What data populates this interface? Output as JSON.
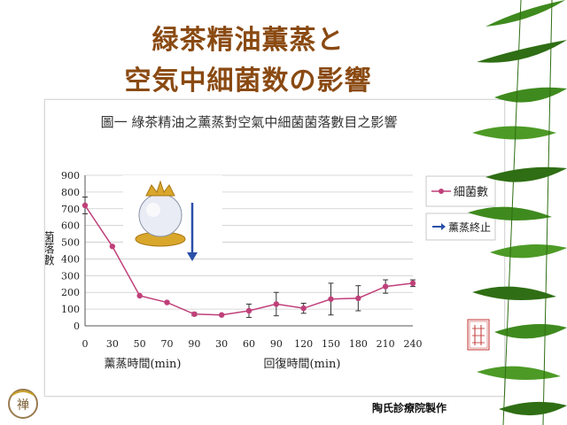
{
  "slide": {
    "title_line1": "緑茶精油薫蒸と",
    "title_line2": "空気中細菌数の影響",
    "credit": "陶氏診療院製作",
    "logo_char": "禅"
  },
  "chart_data": {
    "type": "line",
    "title": "圖一 綠茶精油之薰蒸對空氣中細菌菌落數目之影響",
    "ylabel": "菌落數",
    "xlabel_fumigation": "薰蒸時間(min)",
    "xlabel_recovery": "回復時間(min)",
    "ylim": [
      0,
      900
    ],
    "yticks": [
      "0",
      "100",
      "200",
      "300",
      "400",
      "500",
      "600",
      "700",
      "800",
      "900"
    ],
    "categories": [
      "0",
      "30",
      "50",
      "70",
      "90",
      "30",
      "60",
      "90",
      "120",
      "150",
      "180",
      "210",
      "240"
    ],
    "series": [
      {
        "name": "細菌數",
        "color": "#c0407a",
        "values": [
          720,
          475,
          180,
          140,
          70,
          65,
          90,
          130,
          105,
          160,
          165,
          235,
          255
        ],
        "errors": [
          50,
          0,
          0,
          0,
          10,
          0,
          40,
          70,
          30,
          95,
          75,
          40,
          20
        ]
      }
    ],
    "legend": {
      "series_label": "細菌數",
      "arrow_label": "薰蒸終止",
      "position": "right"
    },
    "grid": true,
    "stamp_text": [
      "所",
      "長",
      "蔡",
      "英",
      "傑"
    ]
  }
}
